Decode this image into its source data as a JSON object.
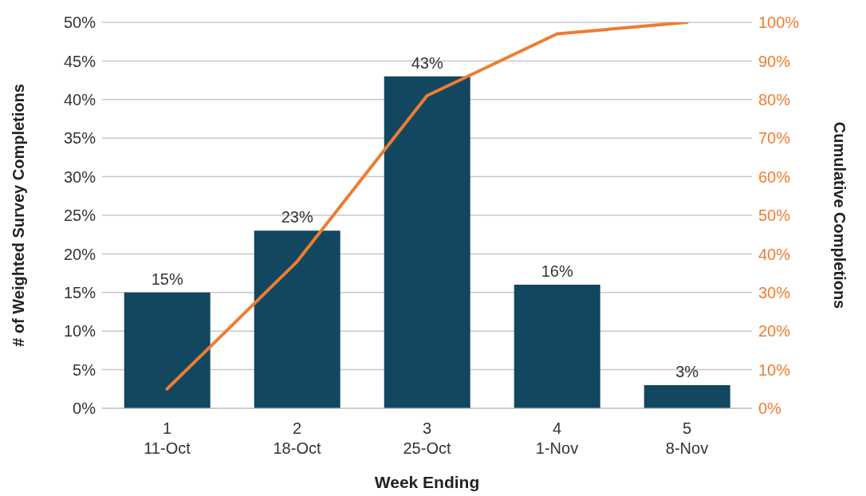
{
  "chart_data": {
    "type": "bar",
    "categories": [
      "1\n11-Oct",
      "2\n18-Oct",
      "3\n25-Oct",
      "4\n1-Nov",
      "5\n8-Nov"
    ],
    "xlabel": "Week Ending",
    "ylabel": "# of Weighted Survey Completions",
    "y2label": "Cumulative Completions",
    "series": [
      {
        "color": "#12475f",
        "values": [
          15,
          23,
          43,
          16,
          3
        ],
        "value_labels": [
          "15%",
          "23%",
          "43%",
          "16%",
          "3%"
        ]
      },
      {
        "type": "line",
        "axis": "y2",
        "color": "#ed7d31",
        "values": [
          5,
          38,
          81,
          97,
          100
        ]
      }
    ],
    "ylim": [
      0,
      50
    ],
    "yticks": [
      {
        "value": 0,
        "label": "0%"
      },
      {
        "value": 5,
        "label": "5%"
      },
      {
        "value": 10,
        "label": "10%"
      },
      {
        "value": 15,
        "label": "15%"
      },
      {
        "value": 20,
        "label": "20%"
      },
      {
        "value": 25,
        "label": "25%"
      },
      {
        "value": 30,
        "label": "30%"
      },
      {
        "value": 35,
        "label": "35%"
      },
      {
        "value": 40,
        "label": "40%"
      },
      {
        "value": 45,
        "label": "45%"
      },
      {
        "value": 50,
        "label": "50%"
      }
    ],
    "y2lim": [
      0,
      100
    ],
    "y2ticks": [
      {
        "value": 0,
        "label": "0%"
      },
      {
        "value": 10,
        "label": "10%"
      },
      {
        "value": 20,
        "label": "20%"
      },
      {
        "value": 30,
        "label": "30%"
      },
      {
        "value": 40,
        "label": "40%"
      },
      {
        "value": 50,
        "label": "50%"
      },
      {
        "value": 60,
        "label": "60%"
      },
      {
        "value": 70,
        "label": "70%"
      },
      {
        "value": 80,
        "label": "80%"
      },
      {
        "value": 90,
        "label": "90%"
      },
      {
        "value": 100,
        "label": "100%"
      }
    ],
    "grid": "y",
    "legend": false,
    "marker": "none",
    "line_style": "solid"
  }
}
